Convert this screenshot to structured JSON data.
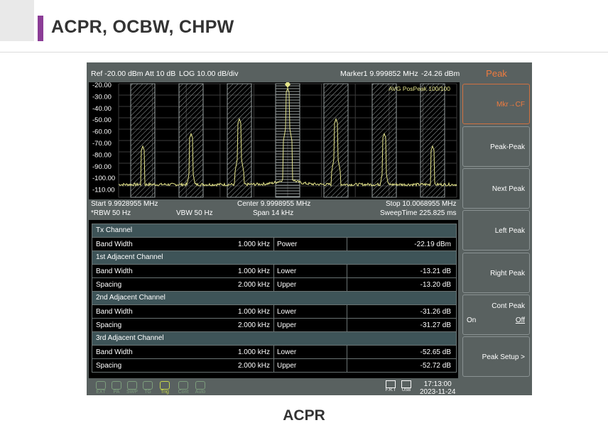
{
  "page": {
    "title": "ACPR, OCBW, CHPW",
    "caption": "ACPR"
  },
  "colors": {
    "accent_bar": "#8c3d97",
    "trace": "#e4e48a",
    "softkey_highlight": "#f07b3f",
    "panel_bg": "#596160",
    "section_bg": "#3e5458"
  },
  "analyzer": {
    "header": {
      "ref": "Ref -20.00 dBm",
      "att": "Att 10 dB",
      "scale": "LOG 10.00 dB/div",
      "marker_label": "Marker1 9.999852 MHz",
      "marker_value": "-24.26 dBm"
    },
    "plot": {
      "trace_label": "AVG PosPeak 100/100",
      "y_ticks": [
        "-20.00",
        "-30.00",
        "-40.00",
        "-50.00",
        "-60.00",
        "-70.00",
        "-80.00",
        "-90.00",
        "-100.00",
        "-110.00"
      ],
      "marker_number": "1"
    },
    "info": {
      "start": "Start 9.9928955 MHz",
      "center": "Center 9.9998955 MHz",
      "stop": "Stop 10.0068955 MHz",
      "rbw": "*RBW 50 Hz",
      "vbw": "VBW 50 Hz",
      "span": "Span 14 kHz",
      "sweep": "SweepTime 225.825 ms"
    },
    "table": {
      "tx_title": "Tx Channel",
      "tx_row": {
        "label": "Band Width",
        "value": "1.000 kHz",
        "param": "Power",
        "result": "-22.19 dBm"
      },
      "adj": [
        {
          "title": "1st Adjacent Channel",
          "rows": [
            {
              "label": "Band Width",
              "value": "1.000 kHz",
              "param": "Lower",
              "result": "-13.21 dB"
            },
            {
              "label": "Spacing",
              "value": "2.000 kHz",
              "param": "Upper",
              "result": "-13.20 dB"
            }
          ]
        },
        {
          "title": "2nd Adjacent Channel",
          "rows": [
            {
              "label": "Band Width",
              "value": "1.000 kHz",
              "param": "Lower",
              "result": "-31.26 dB"
            },
            {
              "label": "Spacing",
              "value": "2.000 kHz",
              "param": "Upper",
              "result": "-31.27 dB"
            }
          ]
        },
        {
          "title": "3rd Adjacent Channel",
          "rows": [
            {
              "label": "Band Width",
              "value": "1.000 kHz",
              "param": "Lower",
              "result": "-52.65 dB"
            },
            {
              "label": "Spacing",
              "value": "2.000 kHz",
              "param": "Upper",
              "result": "-52.72 dB"
            }
          ]
        }
      ]
    },
    "status": {
      "icons": [
        "EXT",
        "PA",
        "SWP",
        "TG",
        "Trig",
        "Cont",
        "Auto"
      ],
      "devices": [
        "F.R.T",
        "USB"
      ],
      "time": "17:13:00",
      "date": "2023-11-24"
    },
    "softkeys": {
      "title": "Peak",
      "mkr_cf": "Mkr→CF",
      "peak_peak": "Peak-Peak",
      "next_peak": "Next Peak",
      "left_peak": "Left Peak",
      "right_peak": "Right Peak",
      "cont_peak": "Cont Peak",
      "cont_on": "On",
      "cont_off": "Off",
      "peak_setup": "Peak Setup   >"
    }
  }
}
